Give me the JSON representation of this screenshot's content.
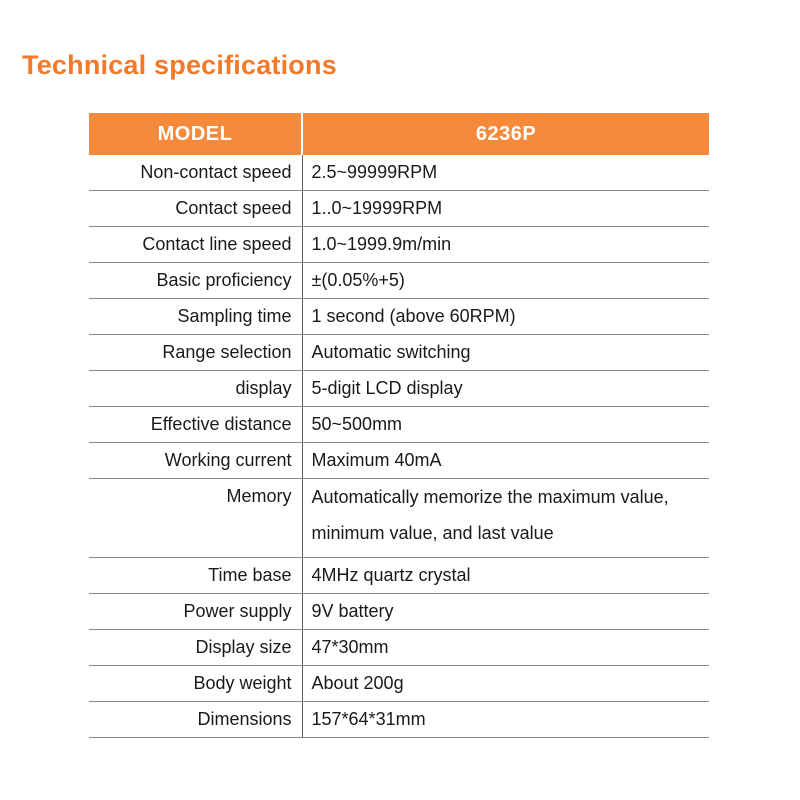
{
  "title": "Technical specifications",
  "table": {
    "header": {
      "model_label": "MODEL",
      "model_value": "6236P"
    },
    "rows": [
      {
        "label": "Non-contact speed",
        "value": "2.5~99999RPM"
      },
      {
        "label": "Contact speed",
        "value": "1..0~19999RPM"
      },
      {
        "label": "Contact line speed",
        "value": "1.0~1999.9m/min"
      },
      {
        "label": "Basic proficiency",
        "value": "±(0.05%+5)"
      },
      {
        "label": "Sampling time",
        "value": "1 second (above 60RPM)"
      },
      {
        "label": "Range selection",
        "value": "Automatic switching"
      },
      {
        "label": "display",
        "value": "5-digit LCD display"
      },
      {
        "label": "Effective distance",
        "value": "50~500mm"
      },
      {
        "label": "Working current",
        "value": "Maximum 40mA"
      },
      {
        "label": "Memory",
        "value": "Automatically memorize the maximum value,",
        "value_line2": "minimum value, and last value"
      },
      {
        "label": "Time base",
        "value": "4MHz quartz crystal"
      },
      {
        "label": "Power supply",
        "value": "9V battery"
      },
      {
        "label": "Display size",
        "value": "47*30mm"
      },
      {
        "label": "Body weight",
        "value": "About 200g"
      },
      {
        "label": "Dimensions",
        "value": "157*64*31mm"
      }
    ]
  },
  "colors": {
    "title": "#f07a2a",
    "header_background": "#f58a3c",
    "header_text": "#ffffff"
  }
}
